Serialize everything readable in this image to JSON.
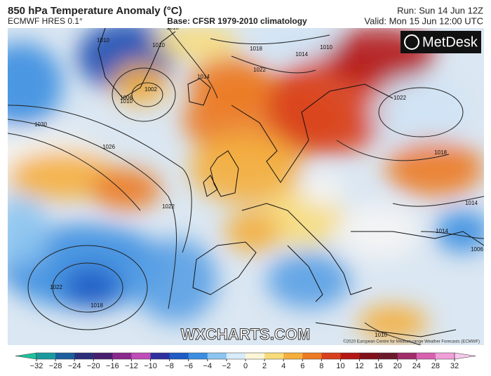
{
  "header": {
    "title": "850 hPa Temperature Anomaly (°C)",
    "model": "ECMWF HRES 0.1°",
    "base": "Base: CFSR 1979-2010 climatology",
    "run": "Run: Sun 14 Jun 12Z",
    "valid": "Valid: Mon 15 Jun 12:00 UTC"
  },
  "logo": "MetDesk",
  "watermark": "WXCHARTS.COM",
  "copyright": "©2020 European Centre for Medium-range Weather Forecasts (ECMWF)",
  "isobar_labels": [
    "1010",
    "1010",
    "1018",
    "1010",
    "1014",
    "1010",
    "1002",
    "1006",
    "1014",
    "1018",
    "1022",
    "1030",
    "1026",
    "1022",
    "1022",
    "1018",
    "1022",
    "1018",
    "1014",
    "1014",
    "1010",
    "1006",
    "1010"
  ],
  "colorbar": {
    "ticks": [
      {
        "value": -32,
        "label": "−32"
      },
      {
        "value": -28,
        "label": "−28"
      },
      {
        "value": -24,
        "label": "−24"
      },
      {
        "value": -20,
        "label": "−20"
      },
      {
        "value": -16,
        "label": "−16"
      },
      {
        "value": -12,
        "label": "−12"
      },
      {
        "value": -10,
        "label": "−10"
      },
      {
        "value": -8,
        "label": "−8"
      },
      {
        "value": -6,
        "label": "−6"
      },
      {
        "value": -4,
        "label": "−4"
      },
      {
        "value": -2,
        "label": "−2"
      },
      0,
      2,
      4,
      6,
      8,
      10,
      12,
      16,
      20,
      24,
      28,
      32
    ],
    "colors": [
      "#1fc29b",
      "#1a9a9e",
      "#1d5f9e",
      "#2a2f7a",
      "#4a1e6e",
      "#8a2a8c",
      "#c04cb8",
      "#2e2ea0",
      "#1f5cc4",
      "#3a8ee0",
      "#8cc4f0",
      "#d8ecfa",
      "#fbf6d8",
      "#f8dc7a",
      "#f4ae3c",
      "#ec7a22",
      "#d8401c",
      "#b41616",
      "#80101a",
      "#6a1a2a",
      "#a02c6a",
      "#d860b0",
      "#f0a0d8",
      "#f8c8ec"
    ]
  }
}
